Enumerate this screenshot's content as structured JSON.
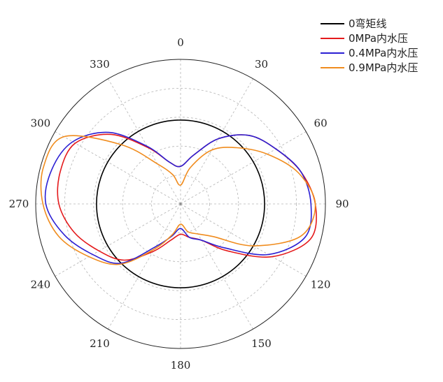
{
  "chart_data": {
    "type": "line",
    "projection": "polar",
    "title": "",
    "theta_direction": "clockwise",
    "theta_zero": "top",
    "theta_ticks": [
      0,
      30,
      60,
      90,
      120,
      150,
      180,
      210,
      240,
      270,
      300,
      330
    ],
    "theta_tick_labels": [
      "0",
      "30",
      "60",
      "90",
      "120",
      "150",
      "180",
      "210",
      "240",
      "270",
      "300",
      "330"
    ],
    "rlim": [
      0,
      1
    ],
    "r_grid": [
      0.2,
      0.4,
      0.6,
      0.8
    ],
    "grid": true,
    "legend_position": "top-right",
    "series": [
      {
        "name": "0弯矩线",
        "color": "#000000",
        "theta": [
          0,
          30,
          60,
          90,
          120,
          150,
          180,
          210,
          240,
          270,
          300,
          330,
          360
        ],
        "r": [
          0.58,
          0.58,
          0.58,
          0.58,
          0.58,
          0.58,
          0.58,
          0.58,
          0.58,
          0.58,
          0.58,
          0.58,
          0.58
        ]
      },
      {
        "name": "0MPa内水压",
        "color": "#e41a1c",
        "theta": [
          0,
          15,
          30,
          45,
          60,
          75,
          90,
          105,
          120,
          135,
          150,
          165,
          180,
          195,
          210,
          225,
          240,
          255,
          270,
          285,
          300,
          315,
          330,
          345,
          360
        ],
        "r": [
          0.26,
          0.35,
          0.52,
          0.67,
          0.76,
          0.86,
          0.93,
          0.93,
          0.73,
          0.46,
          0.29,
          0.24,
          0.21,
          0.26,
          0.38,
          0.55,
          0.65,
          0.76,
          0.84,
          0.86,
          0.84,
          0.68,
          0.45,
          0.3,
          0.26
        ]
      },
      {
        "name": "0.4MPa内水压",
        "color": "#2b1fd3",
        "theta": [
          0,
          15,
          30,
          45,
          60,
          75,
          90,
          105,
          120,
          135,
          150,
          165,
          180,
          195,
          210,
          225,
          240,
          255,
          270,
          285,
          300,
          315,
          330,
          345,
          360
        ],
        "r": [
          0.26,
          0.35,
          0.52,
          0.67,
          0.76,
          0.86,
          0.9,
          0.89,
          0.7,
          0.43,
          0.29,
          0.24,
          0.17,
          0.23,
          0.34,
          0.58,
          0.7,
          0.83,
          0.93,
          0.92,
          0.86,
          0.7,
          0.46,
          0.3,
          0.26
        ]
      },
      {
        "name": "0.9MPa内水压",
        "color": "#f08c1e",
        "theta": [
          0,
          15,
          30,
          45,
          60,
          75,
          90,
          105,
          120,
          135,
          150,
          165,
          180,
          195,
          210,
          225,
          240,
          255,
          270,
          285,
          300,
          315,
          330,
          345,
          360
        ],
        "r": [
          0.13,
          0.26,
          0.43,
          0.55,
          0.69,
          0.84,
          0.93,
          0.86,
          0.58,
          0.32,
          0.24,
          0.2,
          0.14,
          0.22,
          0.36,
          0.59,
          0.73,
          0.87,
          0.95,
          0.98,
          0.93,
          0.58,
          0.32,
          0.21,
          0.13
        ]
      }
    ]
  }
}
